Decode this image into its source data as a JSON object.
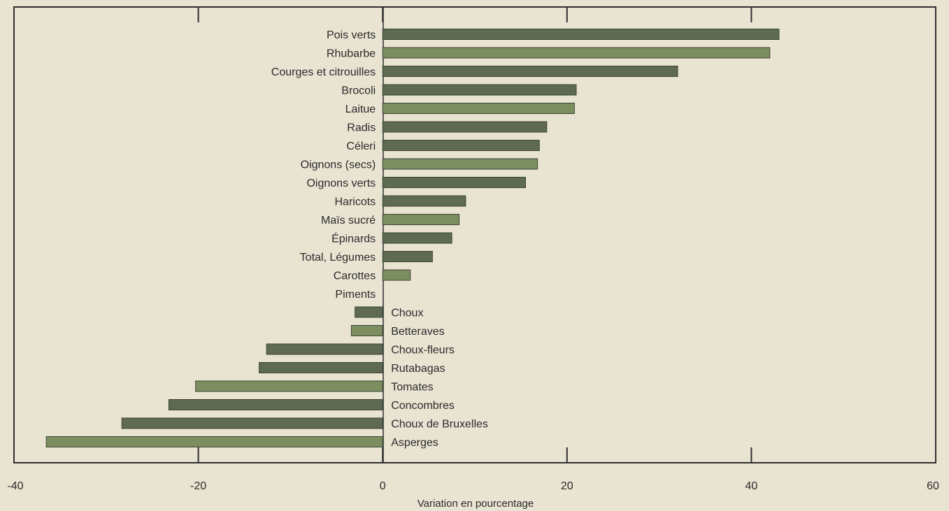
{
  "chart_data": {
    "type": "bar",
    "orientation": "horizontal",
    "xlabel": "Variation en pourcentage",
    "xlim": [
      -40,
      60
    ],
    "xticks": [
      -40,
      -20,
      0,
      20,
      40,
      60
    ],
    "grid": false,
    "categories": [
      "Pois verts",
      "Rhubarbe",
      "Courges et citrouilles",
      "Brocoli",
      "Laitue",
      "Radis",
      "Céleri",
      "Oignons (secs)",
      "Oignons verts",
      "Haricots",
      "Maïs sucré",
      "Épinards",
      "Total, Légumes",
      "Carottes",
      "Piments",
      "Choux",
      "Betteraves",
      "Choux-fleurs",
      "Rutabagas",
      "Tomates",
      "Concombres",
      "Choux de Bruxelles",
      "Asperges"
    ],
    "values": [
      43,
      42,
      32,
      21,
      20.8,
      17.8,
      17,
      16.8,
      15.5,
      9,
      8.3,
      7.5,
      5.4,
      3,
      0,
      -3,
      -3.4,
      -12.6,
      -13.4,
      -20.3,
      -23.2,
      -28.3,
      -36.5
    ],
    "colors": {
      "bar": "#5e6a52",
      "bar_alt": "#7c8e60",
      "axis": "#2f2f2f",
      "background": "#e9e3d2"
    }
  }
}
